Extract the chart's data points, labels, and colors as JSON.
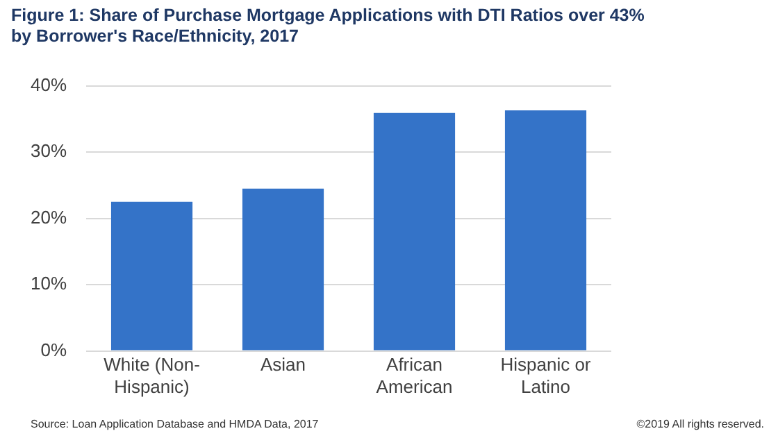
{
  "chart_data": {
    "type": "bar",
    "title": "Figure 1: Share of Purchase Mortgage Applications with DTI Ratios over 43% by Borrower's Race/Ethnicity, 2017",
    "categories": [
      "White (Non-Hispanic)",
      "Asian",
      "African American",
      "Hispanic or Latino"
    ],
    "values": [
      22.5,
      24.5,
      35.9,
      36.3
    ],
    "color": "#3473c8",
    "ylim": [
      0,
      40
    ],
    "yticks": [
      {
        "value": 0,
        "label": "0%"
      },
      {
        "value": 10,
        "label": "10%"
      },
      {
        "value": 20,
        "label": "20%"
      },
      {
        "value": 30,
        "label": "30%"
      },
      {
        "value": 40,
        "label": "40%"
      }
    ],
    "grid": "y",
    "legend": false,
    "annotations": [
      "Source: Loan Application Database and HMDA Data, 2017",
      "©2019 All rights reserved."
    ]
  }
}
